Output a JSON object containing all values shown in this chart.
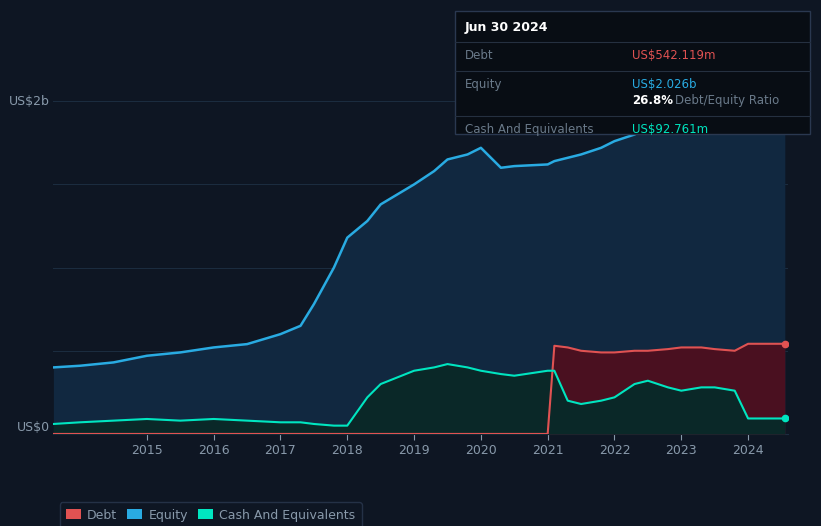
{
  "bg_color": "#0e1623",
  "plot_bg_color": "#0e1623",
  "tooltip": {
    "date": "Jun 30 2024",
    "debt_label": "Debt",
    "debt_value": "US$542.119m",
    "equity_label": "Equity",
    "equity_value": "US$2.026b",
    "ratio_value": "26.8%",
    "ratio_label": "Debt/Equity Ratio",
    "cash_label": "Cash And Equivalents",
    "cash_value": "US$92.761m"
  },
  "ylabel_top": "US$2b",
  "ylabel_bot": "US$0",
  "equity_color": "#29abe2",
  "debt_color": "#e05252",
  "cash_color": "#00e5c0",
  "equity_fill": "#112840",
  "debt_fill": "#4a1020",
  "cash_fill": "#0a2828",
  "years": [
    2013.6,
    2014.0,
    2014.5,
    2015.0,
    2015.5,
    2016.0,
    2016.5,
    2017.0,
    2017.3,
    2017.5,
    2017.8,
    2018.0,
    2018.3,
    2018.5,
    2019.0,
    2019.3,
    2019.5,
    2019.8,
    2020.0,
    2020.3,
    2020.5,
    2021.0,
    2021.1,
    2021.3,
    2021.5,
    2021.8,
    2022.0,
    2022.3,
    2022.5,
    2022.8,
    2023.0,
    2023.3,
    2023.5,
    2023.8,
    2024.0,
    2024.4,
    2024.55
  ],
  "equity": [
    0.4,
    0.41,
    0.43,
    0.47,
    0.49,
    0.52,
    0.54,
    0.6,
    0.65,
    0.78,
    1.0,
    1.18,
    1.28,
    1.38,
    1.5,
    1.58,
    1.65,
    1.68,
    1.72,
    1.6,
    1.61,
    1.62,
    1.64,
    1.66,
    1.68,
    1.72,
    1.76,
    1.8,
    1.84,
    1.88,
    1.9,
    1.94,
    1.97,
    2.0,
    2.026,
    2.026,
    2.026
  ],
  "debt": [
    0.0,
    0.0,
    0.0,
    0.0,
    0.0,
    0.0,
    0.0,
    0.0,
    0.0,
    0.0,
    0.0,
    0.0,
    0.0,
    0.0,
    0.0,
    0.0,
    0.0,
    0.0,
    0.0,
    0.0,
    0.0,
    0.0,
    0.53,
    0.52,
    0.5,
    0.49,
    0.49,
    0.5,
    0.5,
    0.51,
    0.52,
    0.52,
    0.51,
    0.5,
    0.542,
    0.542,
    0.542
  ],
  "cash": [
    0.06,
    0.07,
    0.08,
    0.09,
    0.08,
    0.09,
    0.08,
    0.07,
    0.07,
    0.06,
    0.05,
    0.05,
    0.22,
    0.3,
    0.38,
    0.4,
    0.42,
    0.4,
    0.38,
    0.36,
    0.35,
    0.38,
    0.38,
    0.2,
    0.18,
    0.2,
    0.22,
    0.3,
    0.32,
    0.28,
    0.26,
    0.28,
    0.28,
    0.26,
    0.093,
    0.093,
    0.093
  ],
  "xlim": [
    2013.6,
    2024.6
  ],
  "ylim": [
    0.0,
    2.15
  ],
  "yticks": [
    0.0,
    0.5,
    1.0,
    1.5,
    2.0
  ],
  "xticks": [
    2015,
    2016,
    2017,
    2018,
    2019,
    2020,
    2021,
    2022,
    2023,
    2024
  ],
  "grid_color": "#1c2d40",
  "text_color": "#8899aa",
  "tick_color": "#8899aa"
}
